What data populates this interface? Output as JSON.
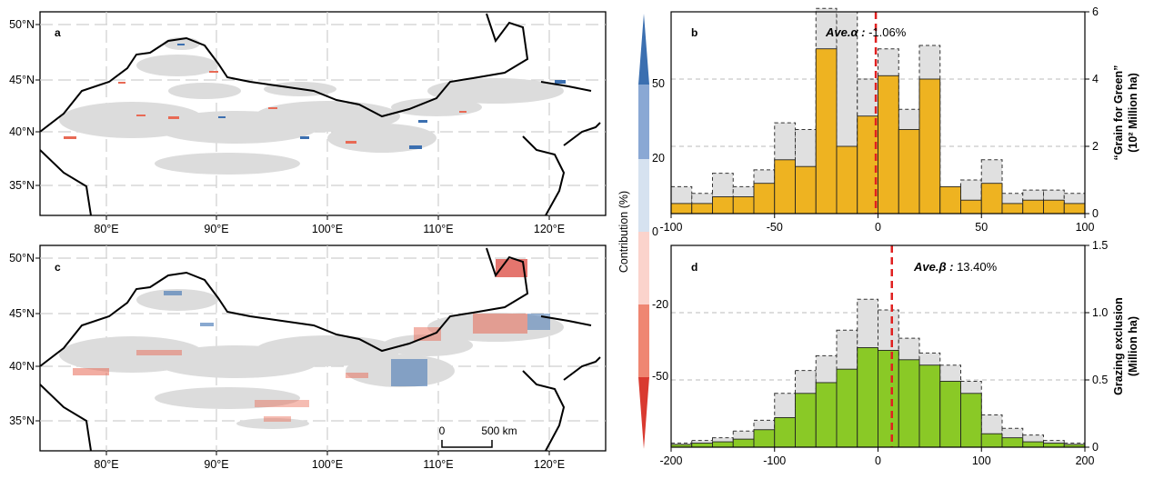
{
  "maps": [
    {
      "label": "a",
      "lat_ticks": [
        "50°N",
        "45°N",
        "40°N",
        "35°N"
      ],
      "lon_ticks": [
        "80°E",
        "90°E",
        "100°E",
        "110°E",
        "120°E"
      ]
    },
    {
      "label": "c",
      "lat_ticks": [
        "50°N",
        "45°N",
        "40°N",
        "35°N"
      ],
      "lon_ticks": [
        "80°E",
        "90°E",
        "100°E",
        "110°E",
        "120°E"
      ],
      "scalebar": {
        "start": "0",
        "end": "500 km"
      }
    }
  ],
  "colorbar": {
    "label": "Contribution (%)",
    "ticks": [
      "50",
      "20",
      "0",
      "-20",
      "-50"
    ],
    "colors": [
      "#3b6fb0",
      "#8aa8d4",
      "#d6e2f0",
      "#fbd3cc",
      "#ef8672",
      "#d93a30"
    ]
  },
  "colors": {
    "grain": "#eeb321",
    "grazing": "#8ac926",
    "ghost": "#e0e0e0",
    "mean_line": "#e02020"
  },
  "chart_data": [
    {
      "type": "bar",
      "panel": "b",
      "annotation_label": "Ave.α :",
      "annotation_value": " -1.06%",
      "mean": -1.06,
      "xlim": [
        -100,
        100
      ],
      "ylim": [
        0,
        6
      ],
      "x_ticks": [
        "-100",
        "-50",
        "0",
        "50",
        "100"
      ],
      "y_ticks": [
        "0",
        "2",
        "4",
        "6"
      ],
      "ylabel_line1": "“Grain for Green”",
      "ylabel_line2": "(10² Million ha)",
      "bin_width": 10,
      "bin_start": -100,
      "series": [
        {
          "name": "area",
          "values": [
            0.3,
            0.3,
            0.5,
            0.5,
            0.9,
            1.6,
            1.4,
            4.9,
            2.0,
            2.9,
            4.1,
            2.5,
            4.0,
            0.8,
            0.4,
            0.9,
            0.3,
            0.4,
            0.4,
            0.3
          ]
        },
        {
          "name": "total",
          "values": [
            0.8,
            0.6,
            1.2,
            0.8,
            1.3,
            2.7,
            2.5,
            6.1,
            6.0,
            4.0,
            4.9,
            3.1,
            5.0,
            0.7,
            1.0,
            1.6,
            0.6,
            0.7,
            0.7,
            0.6
          ]
        }
      ]
    },
    {
      "type": "bar",
      "panel": "d",
      "annotation_label": "Ave.β :",
      "annotation_value": " 13.40%",
      "mean": 13.4,
      "xlim": [
        -200,
        200
      ],
      "ylim": [
        0,
        1.5
      ],
      "x_ticks": [
        "-200",
        "-100",
        "0",
        "100",
        "200"
      ],
      "y_ticks": [
        "0",
        "0.5",
        "1.0",
        "1.5"
      ],
      "ylabel_line1": "Grazing exclusion",
      "ylabel_line2": "(Million ha)",
      "bin_width": 20,
      "bin_start": -200,
      "series": [
        {
          "name": "area",
          "values": [
            0.02,
            0.03,
            0.04,
            0.06,
            0.13,
            0.22,
            0.4,
            0.48,
            0.58,
            0.74,
            0.72,
            0.65,
            0.61,
            0.49,
            0.4,
            0.1,
            0.07,
            0.04,
            0.03,
            0.02
          ]
        },
        {
          "name": "total",
          "values": [
            0.03,
            0.05,
            0.07,
            0.12,
            0.2,
            0.4,
            0.57,
            0.68,
            0.87,
            1.1,
            1.02,
            0.81,
            0.7,
            0.61,
            0.49,
            0.24,
            0.14,
            0.09,
            0.05,
            0.03
          ]
        }
      ]
    }
  ]
}
